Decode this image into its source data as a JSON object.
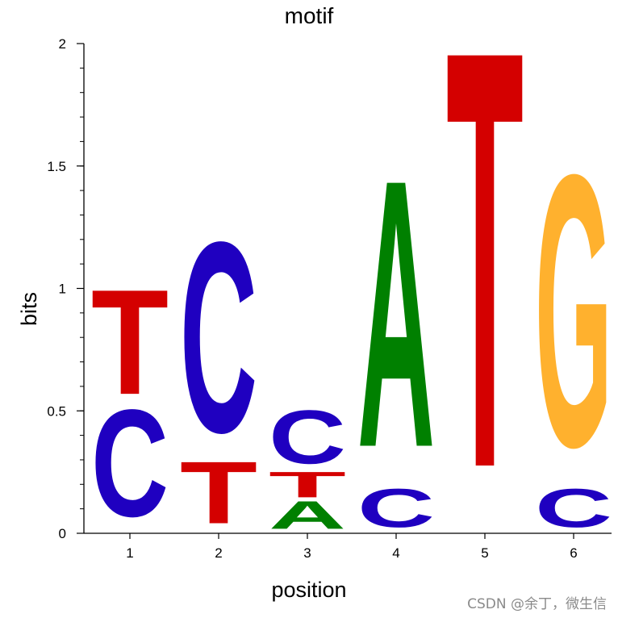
{
  "chart_data": {
    "type": "sequence-logo",
    "title": "motif",
    "xlabel": "position",
    "ylabel": "bits",
    "ylim": [
      0,
      2
    ],
    "y_ticks": [
      "0",
      "0.5",
      "1",
      "1.5",
      "2"
    ],
    "x_ticks": [
      "1",
      "2",
      "3",
      "4",
      "5",
      "6"
    ],
    "colors": {
      "A": "#008000",
      "C": "#1f00c0",
      "G": "#ffb12e",
      "T": "#d40000"
    },
    "positions": [
      {
        "position": "1",
        "letters": [
          {
            "letter": "C",
            "bits": 0.5
          },
          {
            "letter": "T",
            "bits": 0.49
          }
        ]
      },
      {
        "position": "2",
        "letters": [
          {
            "letter": "T",
            "bits": 0.29
          },
          {
            "letter": "C",
            "bits": 0.89
          }
        ]
      },
      {
        "position": "3",
        "letters": [
          {
            "letter": "A",
            "bits": 0.13
          },
          {
            "letter": "T",
            "bits": 0.12
          },
          {
            "letter": "C",
            "bits": 0.25
          }
        ]
      },
      {
        "position": "4",
        "letters": [
          {
            "letter": "C",
            "bits": 0.18
          },
          {
            "letter": "A",
            "bits": 1.25
          }
        ]
      },
      {
        "position": "5",
        "letters": [
          {
            "letter": "T",
            "bits": 1.95
          }
        ]
      },
      {
        "position": "6",
        "letters": [
          {
            "letter": "C",
            "bits": 0.18
          },
          {
            "letter": "G",
            "bits": 1.27
          }
        ]
      }
    ]
  },
  "watermark": "CSDN @余丁，微生信"
}
